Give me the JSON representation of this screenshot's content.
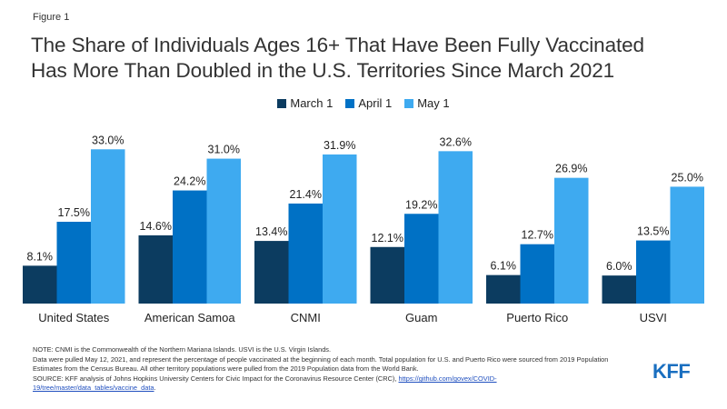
{
  "figure_label": "Figure 1",
  "title_line1": "The Share of Individuals Ages 16+ That Have Been Fully Vaccinated",
  "title_line2": "Has More Than Doubled in the U.S. Territories Since March 2021",
  "colors": {
    "March 1": "#0c3c60",
    "April 1": "#0071c5",
    "May 1": "#3eaaf0"
  },
  "chart_data": {
    "type": "bar",
    "categories": [
      "United States",
      "American Samoa",
      "CNMI",
      "Guam",
      "Puerto Rico",
      "USVI"
    ],
    "series": [
      {
        "name": "March 1",
        "values": [
          8.1,
          14.6,
          13.4,
          12.1,
          6.1,
          6.0
        ],
        "labels": [
          "8.1%",
          "14.6%",
          "13.4%",
          "12.1%",
          "6.1%",
          "6.0%"
        ]
      },
      {
        "name": "April 1",
        "values": [
          17.5,
          24.2,
          21.4,
          19.2,
          12.7,
          13.5
        ],
        "labels": [
          "17.5%",
          "24.2%",
          "21.4%",
          "19.2%",
          "12.7%",
          "13.5%"
        ]
      },
      {
        "name": "May 1",
        "values": [
          33.0,
          31.0,
          31.9,
          32.6,
          26.9,
          25.0
        ],
        "labels": [
          "33.0%",
          "31.0%",
          "31.9%",
          "32.6%",
          "26.9%",
          "25.0%"
        ]
      }
    ],
    "ylim": [
      0,
      35
    ],
    "legend_position": "top-center",
    "grid": false
  },
  "notes": {
    "note": "NOTE: CNMI is the Commonwealth of the Northern Mariana Islands. USVI is the U.S. Virgin Islands.",
    "data": "Data were pulled May 12, 2021, and represent the percentage of people vaccinated at the beginning of each month. Total population for U.S. and Puerto Rico were sourced from 2019 Population Estimates from the Census Bureau. All other territory populations were pulled from the 2019 Population data from the World Bank.",
    "source_prefix": "SOURCE: KFF analysis of Johns Hopkins University Centers for Civic Impact for the Coronavirus Resource Center (CRC), ",
    "source_link": "https://github.com/govex/COVID-19/tree/master/data_tables/vaccine_data",
    "source_suffix": "."
  },
  "logo_text": "KFF"
}
